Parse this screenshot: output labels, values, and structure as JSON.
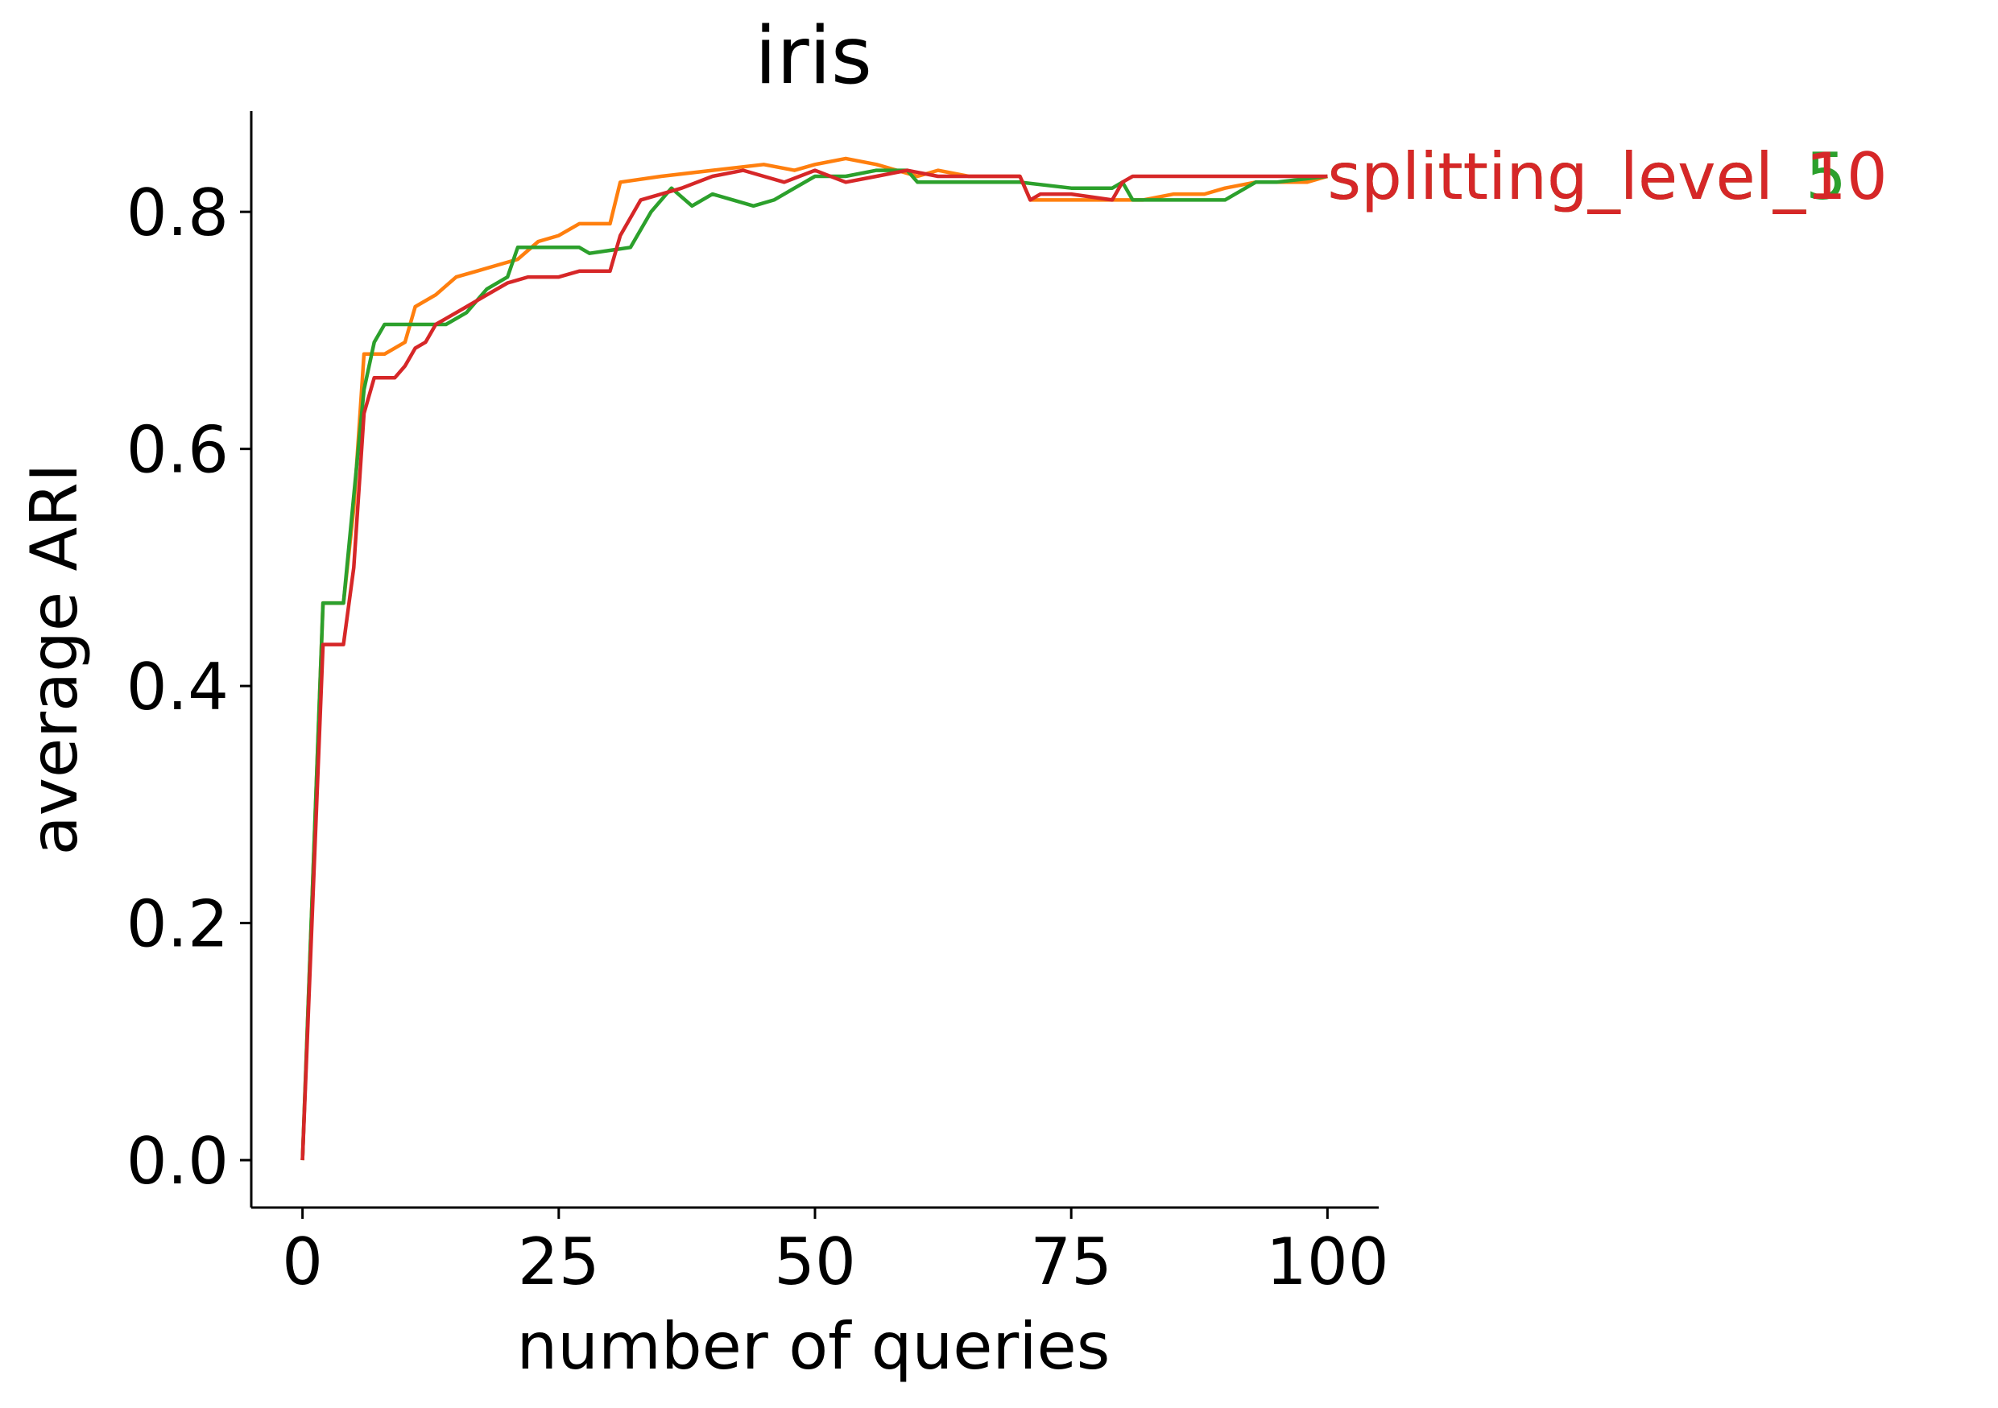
{
  "chart_data": {
    "type": "line",
    "title": "iris",
    "xlabel": "number of queries",
    "ylabel": "average ARI",
    "xlim": [
      -5,
      105
    ],
    "ylim": [
      -0.04,
      0.885
    ],
    "xticks": [
      0,
      25,
      50,
      75,
      100
    ],
    "xtick_labels": [
      "0",
      "25",
      "50",
      "75",
      "100"
    ],
    "yticks": [
      0.0,
      0.2,
      0.4,
      0.6,
      0.8
    ],
    "ytick_labels": [
      "0.0",
      "0.2",
      "0.4",
      "0.6",
      "0.8"
    ],
    "grid": false,
    "legend": "end-of-line labels",
    "series": [
      {
        "name": "splitting_level_1",
        "color": "#ff7f0e",
        "x": [
          0,
          2,
          4,
          5,
          6,
          8,
          10,
          11,
          13,
          15,
          17,
          19,
          21,
          23,
          25,
          27,
          30,
          31,
          35,
          40,
          45,
          48,
          50,
          53,
          56,
          58,
          60,
          62,
          65,
          70,
          71,
          75,
          80,
          82,
          85,
          88,
          90,
          93,
          95,
          98,
          100
        ],
        "y": [
          0.0,
          0.47,
          0.47,
          0.55,
          0.68,
          0.68,
          0.69,
          0.72,
          0.73,
          0.745,
          0.75,
          0.755,
          0.76,
          0.775,
          0.78,
          0.79,
          0.79,
          0.825,
          0.83,
          0.835,
          0.84,
          0.835,
          0.84,
          0.845,
          0.84,
          0.835,
          0.83,
          0.835,
          0.83,
          0.83,
          0.81,
          0.81,
          0.81,
          0.81,
          0.815,
          0.815,
          0.82,
          0.825,
          0.825,
          0.825,
          0.83
        ]
      },
      {
        "name": "splitting_level_5",
        "color": "#2ca02c",
        "x": [
          0,
          2,
          4,
          6,
          7,
          8,
          10,
          14,
          16,
          18,
          20,
          21,
          23,
          25,
          27,
          28,
          32,
          34,
          36,
          38,
          40,
          42,
          44,
          46,
          48,
          50,
          53,
          56,
          59,
          60,
          62,
          65,
          70,
          75,
          77,
          79,
          80,
          81,
          83,
          85,
          87,
          89,
          90,
          91,
          93,
          95,
          100
        ],
        "y": [
          0.0,
          0.47,
          0.47,
          0.65,
          0.69,
          0.705,
          0.705,
          0.705,
          0.715,
          0.735,
          0.745,
          0.77,
          0.77,
          0.77,
          0.77,
          0.765,
          0.77,
          0.8,
          0.82,
          0.805,
          0.815,
          0.81,
          0.805,
          0.81,
          0.82,
          0.83,
          0.83,
          0.835,
          0.835,
          0.825,
          0.825,
          0.825,
          0.825,
          0.82,
          0.82,
          0.82,
          0.825,
          0.81,
          0.81,
          0.81,
          0.81,
          0.81,
          0.81,
          0.815,
          0.825,
          0.825,
          0.83
        ]
      },
      {
        "name": "splitting_level_10",
        "color": "#d62728",
        "x": [
          0,
          2,
          4,
          5,
          6,
          7,
          9,
          10,
          11,
          12,
          13,
          14,
          16,
          18,
          20,
          22,
          25,
          27,
          30,
          31,
          33,
          35,
          37,
          40,
          43,
          45,
          47,
          50,
          53,
          56,
          59,
          62,
          65,
          70,
          71,
          72,
          75,
          79,
          80,
          81,
          85,
          90,
          95,
          100
        ],
        "y": [
          0.0,
          0.435,
          0.435,
          0.5,
          0.63,
          0.66,
          0.66,
          0.67,
          0.685,
          0.69,
          0.705,
          0.71,
          0.72,
          0.73,
          0.74,
          0.745,
          0.745,
          0.75,
          0.75,
          0.78,
          0.81,
          0.815,
          0.82,
          0.83,
          0.835,
          0.83,
          0.825,
          0.835,
          0.825,
          0.83,
          0.835,
          0.83,
          0.83,
          0.83,
          0.81,
          0.815,
          0.815,
          0.81,
          0.825,
          0.83,
          0.83,
          0.83,
          0.83,
          0.83
        ]
      }
    ]
  }
}
